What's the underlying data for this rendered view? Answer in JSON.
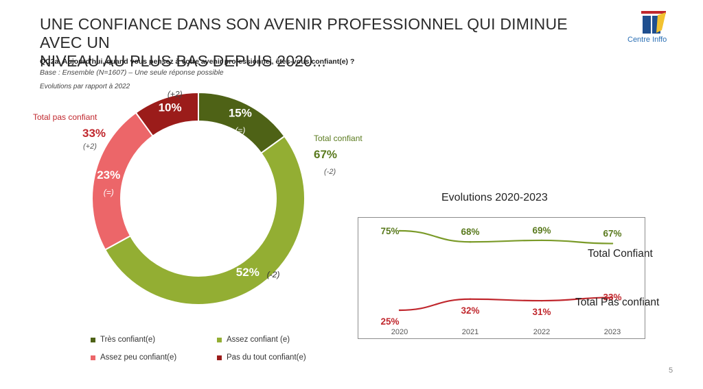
{
  "slide": {
    "title_line1": "UNE CONFIANCE DANS SON AVENIR PROFESSIONNEL QUI DIMINUE AVEC UN",
    "title_line2": "NIVEAU AU PLUS BAS DEPUIS 2020...",
    "question": "QC2a. Aujourd'hui, quand vous pensez à votre avenir professionnel, êtes-vous confiant(e) ?",
    "base": "Base : Ensemble (N=1607) – Une seule réponse possible",
    "evolutions_note": "Evolutions par rapport à 2022",
    "logo_text": "Centre Inffo",
    "page_number": "5"
  },
  "chart_data": [
    {
      "type": "pie",
      "subtype": "donut",
      "title": "",
      "categories": [
        "Très confiant(e)",
        "Assez confiant (e)",
        "Assez peu confiant(e)",
        "Pas du tout confiant(e)"
      ],
      "values": [
        15,
        52,
        23,
        10
      ],
      "value_labels": [
        "15%",
        "52%",
        "23%",
        "10%"
      ],
      "changes": [
        "(=)",
        "(-2)",
        "(=)",
        "(+2)"
      ],
      "colors": [
        "#4e6216",
        "#93ae33",
        "#ec6669",
        "#9b1c1a"
      ],
      "legend_position": "bottom",
      "totals": [
        {
          "label": "Total pas confiant",
          "value": "33%",
          "change": "(+2)",
          "color": "#c0272d"
        },
        {
          "label": "Total confiant",
          "value": "67%",
          "change": "(-2)",
          "color": "#5a7a1e"
        }
      ]
    },
    {
      "type": "line",
      "title": "Evolutions 2020-2023",
      "categories": [
        "2020",
        "2021",
        "2022",
        "2023"
      ],
      "series": [
        {
          "name": "Total Confiant",
          "values": [
            75,
            68,
            69,
            67
          ],
          "labels": [
            "75%",
            "68%",
            "69%",
            "67%"
          ],
          "color": "#7a9a28"
        },
        {
          "name": "Total Pas confiant",
          "values": [
            25,
            32,
            31,
            33
          ],
          "labels": [
            "25%",
            "32%",
            "31%",
            "33%"
          ],
          "color": "#c0272d"
        }
      ],
      "xlabel": "",
      "ylabel": "",
      "ylim": [
        0,
        100
      ],
      "grid": false
    }
  ]
}
